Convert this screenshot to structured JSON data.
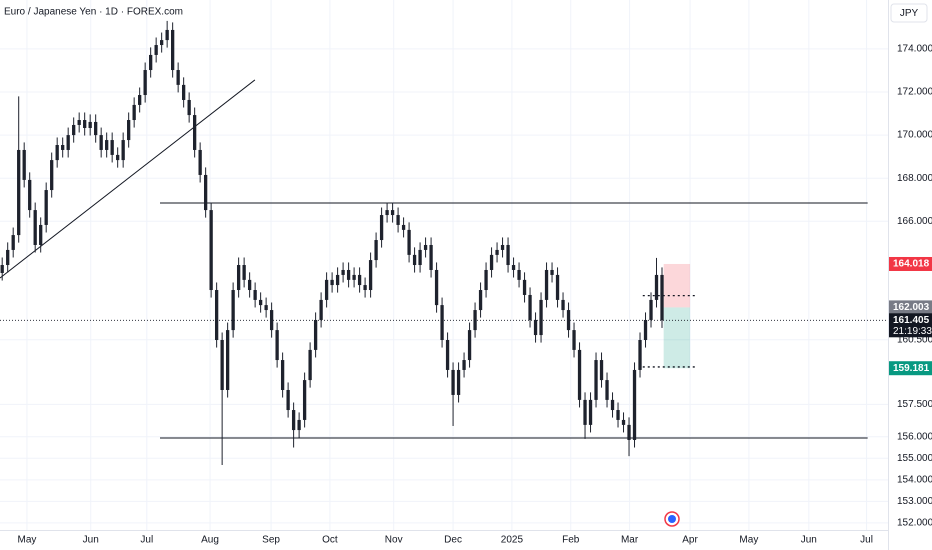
{
  "chart_data": {
    "type": "candlestick",
    "title": "Euro / Japanese Yen · 1D · FOREX.com",
    "currency": "JPY",
    "up_color": "#1e222d",
    "down_color": "#1e222d",
    "xlim": [
      -0.4,
      161.1
    ],
    "xticks": [
      {
        "value": 4.5,
        "label": "May"
      },
      {
        "value": 16.1,
        "label": "Jun"
      },
      {
        "value": 26.3,
        "label": "Jul"
      },
      {
        "value": 37.8,
        "label": "Aug"
      },
      {
        "value": 48.9,
        "label": "Sep"
      },
      {
        "value": 59.6,
        "label": "Oct"
      },
      {
        "value": 71.2,
        "label": "Nov"
      },
      {
        "value": 82.0,
        "label": "Dec"
      },
      {
        "value": 92.7,
        "label": "2025"
      },
      {
        "value": 103.4,
        "label": "Feb"
      },
      {
        "value": 114.1,
        "label": "Mar"
      },
      {
        "value": 125.1,
        "label": "Apr"
      },
      {
        "value": 135.8,
        "label": "May"
      },
      {
        "value": 146.7,
        "label": "Jun"
      },
      {
        "value": 157.2,
        "label": "Jul"
      }
    ],
    "ylim": [
      151.44,
      176.27
    ],
    "yticks": [
      {
        "value": 152,
        "label": "152.000"
      },
      {
        "value": 153,
        "label": "153.000"
      },
      {
        "value": 154,
        "label": "154.000"
      },
      {
        "value": 155,
        "label": "155.000"
      },
      {
        "value": 156,
        "label": "156.000"
      },
      {
        "value": 157.5,
        "label": "157.500"
      },
      {
        "value": 160.5,
        "label": "160.500"
      },
      {
        "value": 166,
        "label": "166.000"
      },
      {
        "value": 168,
        "label": "168.000"
      },
      {
        "value": 170,
        "label": "170.000"
      },
      {
        "value": 172,
        "label": "172.000"
      },
      {
        "value": 174,
        "label": "174.000"
      }
    ],
    "grid": true,
    "open": [
      163.6,
      163.97,
      164.67,
      165.36,
      169.31,
      167.92,
      166.52,
      164.9,
      165.83,
      167.45,
      168.84,
      169.54,
      169.31,
      170.0,
      170.47,
      170.7,
      170.33,
      170.61,
      170.0,
      169.31,
      169.77,
      169.08,
      168.84,
      169.77,
      170.7,
      171.4,
      171.86,
      173.02,
      173.72,
      174.18,
      174.41,
      174.88,
      173.02,
      172.33,
      171.63,
      170.93,
      169.31,
      168.15,
      166.52,
      162.81,
      160.49,
      158.17,
      160.95,
      162.81,
      163.97,
      163.28,
      162.81,
      162.35,
      162.11,
      161.88,
      160.95,
      159.56,
      158.17,
      157.24,
      156.31,
      156.78,
      158.63,
      160.03,
      161.42,
      162.35,
      163.28,
      163.04,
      163.51,
      163.74,
      163.28,
      163.51,
      163.04,
      162.81,
      164.2,
      165.13,
      166.29,
      166.52,
      166.29,
      165.83,
      165.6,
      164.44,
      163.97,
      164.67,
      164.9,
      163.74,
      162.11,
      160.49,
      159.1,
      157.94,
      159.1,
      159.56,
      160.95,
      161.88,
      162.81,
      163.74,
      164.44,
      164.67,
      164.9,
      163.97,
      163.74,
      163.28,
      162.58,
      161.42,
      160.72,
      162.35,
      163.74,
      163.51,
      162.35,
      161.88,
      160.95,
      160.03,
      157.71,
      156.55,
      157.71,
      159.56,
      158.63,
      157.71,
      157.24,
      156.78,
      156.55,
      155.85,
      159.1,
      160.49,
      161.42,
      162.35,
      163.51
    ],
    "high": [
      164.32,
      165.02,
      165.71,
      171.8,
      169.66,
      168.27,
      166.87,
      166.18,
      167.8,
      169.19,
      169.89,
      169.89,
      170.35,
      170.82,
      171.05,
      171.05,
      170.96,
      170.96,
      170.35,
      170.12,
      170.12,
      169.43,
      170.12,
      171.05,
      171.75,
      172.21,
      173.37,
      174.07,
      174.53,
      174.76,
      175.3,
      175.23,
      173.37,
      172.68,
      171.98,
      171.28,
      169.66,
      168.5,
      166.87,
      163.16,
      160.84,
      161.3,
      163.16,
      164.32,
      164.32,
      163.63,
      163.16,
      162.7,
      162.46,
      162.23,
      161.3,
      159.91,
      158.52,
      157.59,
      157.13,
      158.98,
      160.38,
      161.77,
      162.7,
      163.63,
      163.63,
      163.86,
      164.09,
      164.09,
      163.86,
      163.86,
      163.39,
      164.55,
      165.48,
      166.64,
      166.87,
      166.87,
      166.64,
      166.18,
      165.95,
      164.79,
      165.02,
      165.25,
      165.25,
      164.09,
      162.46,
      160.84,
      159.45,
      159.45,
      159.91,
      161.3,
      162.23,
      163.16,
      164.09,
      164.79,
      165.02,
      165.25,
      165.25,
      164.32,
      164.09,
      163.63,
      162.93,
      161.77,
      162.7,
      164.09,
      164.09,
      163.86,
      162.7,
      162.23,
      161.3,
      160.38,
      158.06,
      158.06,
      159.91,
      159.91,
      158.98,
      158.06,
      157.59,
      157.13,
      156.9,
      159.45,
      160.84,
      161.77,
      162.7,
      164.3,
      163.86
    ],
    "low": [
      163.25,
      163.62,
      164.32,
      165.01,
      167.57,
      166.17,
      164.55,
      164.55,
      165.48,
      167.1,
      168.49,
      168.96,
      168.96,
      169.65,
      170.12,
      169.98,
      169.98,
      169.65,
      168.96,
      168.96,
      168.73,
      168.49,
      168.49,
      169.42,
      170.35,
      171.05,
      171.51,
      172.67,
      173.37,
      173.83,
      174.06,
      172.67,
      171.98,
      171.28,
      170.58,
      168.96,
      167.8,
      166.17,
      162.46,
      160.14,
      154.69,
      157.82,
      160.6,
      162.46,
      162.93,
      162.46,
      162.0,
      161.76,
      161.53,
      160.6,
      159.21,
      157.82,
      156.89,
      155.5,
      155.96,
      156.43,
      158.28,
      159.68,
      161.07,
      162.0,
      162.69,
      162.69,
      163.16,
      162.93,
      162.93,
      162.69,
      162.46,
      162.46,
      163.85,
      164.78,
      165.94,
      165.94,
      165.48,
      165.25,
      164.09,
      163.62,
      163.62,
      164.32,
      163.39,
      161.76,
      160.14,
      158.75,
      156.5,
      157.59,
      158.75,
      159.21,
      160.6,
      161.53,
      162.46,
      163.39,
      164.09,
      164.32,
      163.62,
      163.39,
      162.93,
      162.23,
      161.07,
      160.37,
      160.37,
      162.0,
      163.16,
      162.0,
      161.53,
      160.6,
      159.68,
      157.36,
      155.9,
      156.2,
      157.36,
      158.28,
      157.36,
      156.89,
      156.43,
      156.2,
      155.1,
      155.5,
      158.75,
      160.14,
      161.07,
      162.0,
      161.05
    ],
    "close": [
      163.97,
      164.67,
      165.36,
      169.31,
      167.92,
      166.52,
      164.9,
      165.83,
      167.45,
      168.84,
      169.54,
      169.31,
      170.0,
      170.47,
      170.7,
      170.33,
      170.61,
      170.0,
      169.31,
      169.77,
      169.08,
      168.84,
      169.77,
      170.7,
      171.4,
      171.86,
      173.02,
      173.72,
      174.18,
      174.41,
      174.88,
      173.02,
      172.33,
      171.63,
      170.93,
      169.31,
      168.15,
      166.52,
      162.81,
      160.49,
      158.17,
      160.95,
      162.81,
      163.97,
      163.28,
      162.81,
      162.35,
      162.11,
      161.88,
      160.95,
      159.56,
      158.17,
      157.24,
      156.31,
      156.78,
      158.63,
      160.03,
      161.42,
      162.35,
      163.28,
      163.04,
      163.51,
      163.74,
      163.28,
      163.51,
      163.04,
      162.81,
      164.2,
      165.13,
      166.29,
      166.52,
      166.29,
      165.83,
      165.6,
      164.44,
      163.97,
      164.67,
      164.9,
      163.74,
      162.11,
      160.49,
      159.1,
      157.94,
      159.1,
      159.56,
      160.95,
      161.88,
      162.81,
      163.74,
      164.44,
      164.67,
      164.9,
      163.97,
      163.74,
      163.28,
      162.58,
      161.42,
      160.72,
      162.35,
      163.74,
      163.51,
      162.35,
      161.88,
      160.95,
      160.03,
      157.71,
      156.55,
      157.71,
      159.56,
      158.63,
      157.71,
      157.24,
      156.78,
      156.55,
      155.85,
      159.1,
      160.49,
      161.42,
      162.35,
      163.51,
      161.405
    ],
    "trendline": {
      "x": [
        -0.4,
        45.96
      ],
      "y": [
        163.37,
        172.56
      ]
    },
    "levels": [
      {
        "y": 166.85,
        "x": [
          28.7,
          157.4
        ]
      },
      {
        "y": 155.94,
        "x": [
          28.7,
          157.4
        ]
      }
    ],
    "dotted_levels": [
      {
        "y": 162.55,
        "x": [
          116.5,
          126.0
        ]
      },
      {
        "y": 159.24,
        "x": [
          116.5,
          126.0
        ]
      }
    ],
    "position": {
      "x": [
        120.3,
        125.1
      ],
      "stop": {
        "value": 164.018,
        "label": "164.018"
      },
      "entry": {
        "value": 162.003,
        "label": "162.003"
      },
      "target": {
        "value": 159.181,
        "label": "159.181"
      },
      "stop_color": "#f23645",
      "entry_color": "#787b86",
      "target_color": "#089981"
    },
    "last_price": {
      "value": 161.405,
      "label": "161.405"
    },
    "countdown": "21:19:33"
  }
}
